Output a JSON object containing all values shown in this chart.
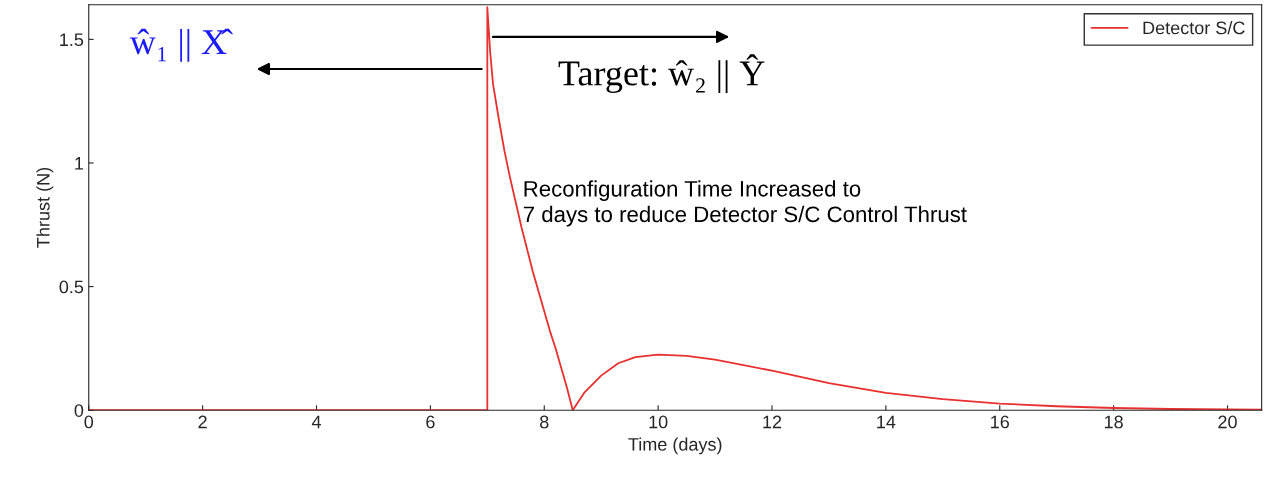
{
  "chart_data": {
    "type": "line",
    "xlabel": "Time (days)",
    "ylabel": "Thrust (N)",
    "xlim": [
      0,
      20.6
    ],
    "ylim": [
      0,
      1.64
    ],
    "xticks": [
      0,
      2,
      4,
      6,
      8,
      10,
      12,
      14,
      16,
      18,
      20
    ],
    "yticks": [
      0,
      0.5,
      1,
      1.5
    ],
    "grid": false,
    "legend": "top right",
    "marker": "none",
    "line_style": "solid",
    "series": [
      {
        "name": "Detector S/C",
        "color": "#e8312f",
        "x": [
          0,
          7,
          7,
          7.05,
          7.1,
          7.2,
          7.3,
          7.4,
          7.5,
          7.6,
          7.7,
          7.8,
          7.9,
          8.0,
          8.1,
          8.2,
          8.3,
          8.4,
          8.5,
          8.7,
          9.0,
          9.3,
          9.6,
          10,
          10.5,
          11,
          12,
          13,
          14,
          15,
          16,
          17,
          18,
          19,
          20,
          20.6
        ],
        "values": [
          0,
          0,
          1.63,
          1.45,
          1.32,
          1.18,
          1.05,
          0.94,
          0.84,
          0.74,
          0.65,
          0.56,
          0.48,
          0.4,
          0.32,
          0.25,
          0.17,
          0.09,
          0,
          0.07,
          0.14,
          0.19,
          0.215,
          0.225,
          0.22,
          0.205,
          0.16,
          0.11,
          0.07,
          0.045,
          0.027,
          0.016,
          0.009,
          0.005,
          0.003,
          0.002
        ]
      }
    ],
    "annotations": [
      "ŵ₁ || X̂",
      "Target: ŵ₂ || Ŷ",
      "Reconfiguration Time Increased to\n7 days to reduce Detector S/C Control Thrust"
    ]
  }
}
